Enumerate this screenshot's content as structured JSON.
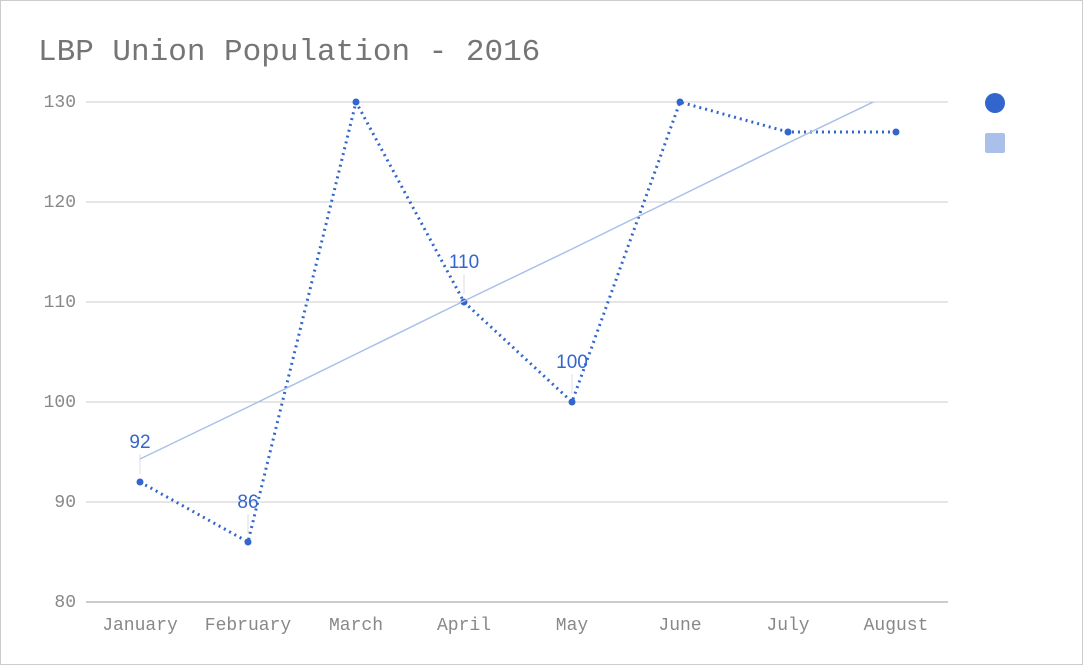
{
  "chart_data": {
    "type": "line",
    "title": "LBP Union Population - 2016",
    "categories": [
      "January",
      "February",
      "March",
      "April",
      "May",
      "June",
      "July",
      "August"
    ],
    "series": [
      {
        "color": "#3366cc",
        "values": [
          92,
          86,
          130,
          110,
          100,
          130,
          127,
          127
        ],
        "value_labels": [
          "92",
          "86",
          null,
          "110",
          "100",
          null,
          null,
          null
        ]
      },
      {
        "color": "#aac0ea",
        "values": [
          94.3,
          99.5,
          104.8,
          110.1,
          115.3,
          120.6,
          125.9,
          131.1
        ]
      }
    ],
    "ylim": [
      80,
      130
    ],
    "yticks": [
      80,
      90,
      100,
      110,
      120,
      130
    ],
    "grid": true,
    "legend": "right"
  }
}
